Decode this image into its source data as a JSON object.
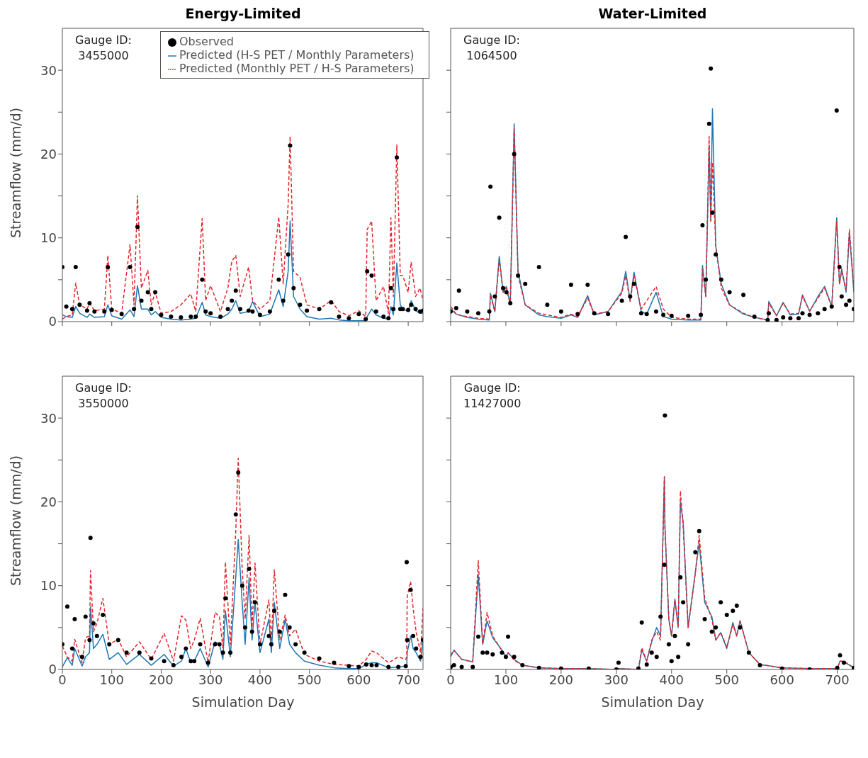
{
  "chart_data": [
    {
      "type": "line",
      "title": "Energy-Limited",
      "ylabel": "Streamflow (mm/d)",
      "annotations": [
        "Gauge ID:",
        "3455000"
      ],
      "legend": "top right",
      "tick_labels": "y",
      "xlim": [
        0,
        730
      ],
      "xticks": [
        0,
        100,
        200,
        300,
        400,
        500,
        600,
        700
      ],
      "ylim": [
        0,
        35
      ],
      "yticks": [
        0,
        {
          "value": 5,
          "label": null
        },
        10,
        {
          "value": 15,
          "label": null
        },
        20,
        {
          "value": 25,
          "label": null
        },
        30
      ],
      "x": [
        0,
        8,
        20,
        27,
        35,
        50,
        55,
        65,
        85,
        92,
        100,
        120,
        137,
        145,
        152,
        160,
        173,
        180,
        188,
        200,
        220,
        240,
        260,
        270,
        283,
        290,
        300,
        320,
        335,
        343,
        351,
        360,
        377,
        385,
        400,
        420,
        438,
        447,
        457,
        461,
        468,
        481,
        495,
        520,
        544,
        560,
        580,
        600,
        614,
        617,
        626,
        635,
        650,
        660,
        665,
        670,
        677,
        684,
        689,
        700,
        706,
        715,
        724,
        730
      ],
      "series": [
        {
          "name": "Observed",
          "type": "scatter",
          "marker": "circle",
          "color": "#000000",
          "values": [
            6.5,
            1.8,
            1.5,
            6.5,
            2.0,
            1.3,
            2.2,
            1.2,
            1.2,
            6.5,
            1.4,
            0.9,
            6.5,
            1.5,
            11.3,
            2.5,
            3.5,
            1.5,
            3.5,
            0.8,
            0.6,
            0.5,
            0.6,
            0.6,
            5.0,
            1.2,
            1.0,
            0.6,
            1.5,
            2.5,
            3.7,
            1.5,
            1.3,
            1.2,
            0.8,
            1.2,
            5.0,
            2.5,
            8.0,
            21.0,
            4.0,
            2.0,
            1.3,
            1.5,
            2.3,
            0.6,
            0.4,
            0.9,
            0.3,
            6.0,
            5.5,
            1.2,
            0.6,
            0.4,
            4.0,
            1.5,
            19.6,
            1.5,
            1.5,
            1.4,
            2.0,
            1.5,
            1.2,
            1.3
          ]
        },
        {
          "name": "Predicted (H-S PET / Monthly Parameters)",
          "type": "line",
          "line_style": "solid",
          "color": "#1f77b4",
          "values": [
            0.8,
            0.6,
            0.5,
            1.8,
            1.0,
            0.5,
            0.9,
            0.5,
            0.6,
            2.0,
            0.7,
            0.3,
            1.4,
            0.6,
            4.3,
            1.5,
            1.5,
            0.8,
            1.2,
            0.5,
            0.3,
            0.2,
            0.3,
            0.4,
            2.3,
            0.8,
            0.6,
            0.4,
            0.9,
            1.5,
            2.5,
            1.0,
            1.2,
            2.4,
            0.6,
            0.9,
            3.8,
            1.8,
            6.0,
            12.0,
            3.0,
            1.5,
            0.6,
            0.3,
            0.4,
            0.2,
            0.1,
            0.1,
            0.1,
            0.6,
            1.5,
            0.8,
            0.4,
            0.3,
            1.8,
            0.8,
            7.0,
            2.0,
            1.5,
            1.2,
            2.5,
            1.3,
            1.0,
            1.0
          ]
        },
        {
          "name": "Predicted (Monthly PET / H-S Parameters)",
          "type": "line",
          "line_style": "dashed",
          "color": "#e3262b",
          "values": [
            0.3,
            0.6,
            0.8,
            4.6,
            2.0,
            1.5,
            2.2,
            1.3,
            1.5,
            7.9,
            1.5,
            1.0,
            9.2,
            2.0,
            15.0,
            4.0,
            6.1,
            2.0,
            3.5,
            1.0,
            1.2,
            2.0,
            3.3,
            1.2,
            12.3,
            2.5,
            4.3,
            1.2,
            4.0,
            7.2,
            7.9,
            3.0,
            6.5,
            2.5,
            1.5,
            2.5,
            12.5,
            4.5,
            14.0,
            22.1,
            6.0,
            5.3,
            2.0,
            1.5,
            2.5,
            1.2,
            0.7,
            1.3,
            0.6,
            11.0,
            12.0,
            2.5,
            4.2,
            1.0,
            12.4,
            3.0,
            21.1,
            5.5,
            5.5,
            3.5,
            7.1,
            3.0,
            4.0,
            2.5
          ]
        }
      ]
    },
    {
      "type": "line",
      "title": "Water-Limited",
      "annotations": [
        "Gauge ID:",
        "1064500"
      ],
      "tick_labels": false,
      "xlim": [
        0,
        730
      ],
      "xticks": [
        0,
        100,
        200,
        300,
        400,
        500,
        600,
        700
      ],
      "ylim": [
        0,
        35
      ],
      "yticks": [
        0,
        {
          "value": 5,
          "label": null
        },
        {
          "value": 10,
          "label": null
        },
        {
          "value": 15,
          "label": null
        },
        {
          "value": 20,
          "label": null
        },
        {
          "value": 25,
          "label": null
        },
        {
          "value": 30,
          "label": null
        }
      ],
      "x": [
        0,
        10,
        15,
        30,
        50,
        70,
        72,
        80,
        88,
        95,
        101,
        108,
        115,
        122,
        135,
        160,
        175,
        200,
        218,
        230,
        248,
        260,
        285,
        310,
        317,
        325,
        332,
        345,
        355,
        372,
        385,
        400,
        430,
        453,
        456,
        462,
        468,
        471,
        474,
        480,
        490,
        505,
        530,
        550,
        574,
        576,
        590,
        602,
        615,
        630,
        637,
        650,
        665,
        677,
        690,
        699,
        704,
        708,
        716,
        722,
        730
      ],
      "series": [
        {
          "type": "scatter",
          "marker": "circle",
          "color": "#000000",
          "values": [
            1.2,
            1.6,
            3.7,
            1.2,
            1.0,
            1.2,
            16.1,
            3.0,
            12.4,
            4.0,
            3.5,
            2.2,
            20.0,
            5.5,
            4.5,
            6.5,
            2.0,
            1.2,
            4.4,
            0.9,
            4.4,
            1.0,
            0.9,
            2.5,
            10.1,
            3.0,
            4.5,
            1.0,
            0.9,
            1.2,
            0.8,
            0.7,
            0.7,
            0.8,
            11.5,
            5.0,
            23.6,
            30.2,
            13.0,
            8.0,
            5.0,
            3.5,
            3.2,
            0.6,
            0.2,
            1.0,
            0.2,
            0.5,
            0.4,
            0.4,
            1.0,
            0.8,
            1.0,
            1.5,
            1.8,
            25.2,
            6.5,
            3.0,
            2.0,
            2.5,
            1.5
          ]
        },
        {
          "type": "line",
          "line_style": "solid",
          "color": "#1f77b4",
          "values": [
            1.5,
            0.9,
            0.8,
            0.5,
            0.3,
            0.2,
            3.4,
            1.2,
            7.8,
            3.5,
            4.2,
            2.0,
            23.6,
            6.0,
            2.0,
            0.8,
            0.6,
            0.4,
            0.8,
            0.5,
            3.1,
            0.8,
            1.2,
            3.6,
            6.0,
            2.5,
            5.9,
            1.2,
            0.9,
            3.5,
            0.6,
            0.3,
            0.2,
            0.2,
            6.7,
            3.0,
            21.0,
            12.0,
            25.4,
            9.0,
            4.5,
            2.0,
            0.9,
            0.5,
            0.2,
            2.4,
            0.7,
            2.3,
            0.8,
            0.9,
            3.2,
            1.2,
            3.0,
            4.2,
            1.8,
            12.4,
            4.5,
            6.3,
            3.5,
            10.7,
            3.5
          ]
        },
        {
          "type": "line",
          "line_style": "dashed",
          "color": "#e3262b",
          "values": [
            1.8,
            0.9,
            0.8,
            0.6,
            0.4,
            0.3,
            3.2,
            1.2,
            7.5,
            3.5,
            4.0,
            2.0,
            23.0,
            5.5,
            2.0,
            1.0,
            0.8,
            0.5,
            0.9,
            0.6,
            2.8,
            0.9,
            1.2,
            3.4,
            5.5,
            2.4,
            5.5,
            1.5,
            2.5,
            4.2,
            1.5,
            0.5,
            0.3,
            0.3,
            6.3,
            3.0,
            22.1,
            12.0,
            19.0,
            9.0,
            4.0,
            2.0,
            1.0,
            0.5,
            0.2,
            2.2,
            0.7,
            2.2,
            0.9,
            1.0,
            3.0,
            1.3,
            2.8,
            4.0,
            1.8,
            12.0,
            4.5,
            6.0,
            3.8,
            11.0,
            4.0
          ]
        }
      ]
    },
    {
      "type": "line",
      "xlabel": "Simulation Day",
      "ylabel": "Streamflow (mm/d)",
      "annotations": [
        "Gauge ID:",
        "3550000"
      ],
      "xlim": [
        0,
        730
      ],
      "xticks": [
        0,
        100,
        200,
        300,
        400,
        500,
        600,
        700
      ],
      "ylim": [
        0,
        35
      ],
      "yticks": [
        0,
        {
          "value": 5,
          "label": null
        },
        10,
        {
          "value": 15,
          "label": null
        },
        20,
        {
          "value": 25,
          "label": null
        },
        30
      ],
      "x": [
        0,
        10,
        20,
        25,
        40,
        47,
        55,
        57,
        63,
        70,
        82,
        95,
        113,
        130,
        156,
        180,
        206,
        225,
        241,
        250,
        260,
        267,
        279,
        295,
        309,
        318,
        325,
        330,
        340,
        351,
        356,
        364,
        370,
        378,
        384,
        390,
        400,
        418,
        423,
        429,
        440,
        451,
        460,
        472,
        490,
        520,
        550,
        580,
        600,
        615,
        626,
        636,
        660,
        680,
        695,
        697,
        698,
        705,
        710,
        716,
        725,
        730
      ],
      "series": [
        {
          "type": "scatter",
          "marker": "circle",
          "color": "#000000",
          "values": [
            3.0,
            7.5,
            2.5,
            6.0,
            1.5,
            6.3,
            3.5,
            15.7,
            5.5,
            4.0,
            6.5,
            3.0,
            3.5,
            2.0,
            2.0,
            1.3,
            1.0,
            0.5,
            1.5,
            2.5,
            1.0,
            1.0,
            3.0,
            0.8,
            3.0,
            3.0,
            2.0,
            8.5,
            2.0,
            18.5,
            23.5,
            10.0,
            5.0,
            12.0,
            4.5,
            8.0,
            3.0,
            4.0,
            3.0,
            7.0,
            4.5,
            8.9,
            5.0,
            3.0,
            2.0,
            1.3,
            0.8,
            0.4,
            0.3,
            0.6,
            0.5,
            0.5,
            0.3,
            0.3,
            0.4,
            12.8,
            3.5,
            9.5,
            4.0,
            2.5,
            1.5,
            3.5
          ]
        },
        {
          "type": "line",
          "line_style": "solid",
          "color": "#1f77b4",
          "values": [
            0.3,
            1.4,
            0.5,
            2.5,
            0.4,
            1.5,
            2.0,
            7.5,
            2.5,
            3.0,
            4.2,
            1.2,
            2.0,
            0.6,
            1.8,
            0.5,
            1.8,
            0.4,
            1.0,
            2.5,
            0.8,
            1.0,
            2.5,
            0.3,
            3.3,
            3.0,
            1.2,
            7.0,
            1.5,
            11.0,
            15.5,
            8.0,
            3.0,
            11.0,
            3.5,
            8.0,
            2.0,
            6.0,
            2.0,
            8.0,
            2.5,
            6.0,
            3.0,
            2.0,
            1.0,
            0.5,
            0.2,
            0.1,
            0.1,
            0.6,
            0.8,
            0.8,
            0.2,
            0.3,
            0.4,
            0.4,
            2.0,
            4.0,
            2.5,
            2.0,
            1.0,
            3.5
          ]
        },
        {
          "type": "line",
          "line_style": "dashed",
          "color": "#e3262b",
          "values": [
            2.8,
            1.5,
            1.0,
            3.6,
            0.8,
            3.8,
            4.0,
            11.8,
            4.5,
            5.5,
            8.5,
            3.0,
            3.6,
            1.5,
            3.3,
            1.2,
            4.3,
            1.0,
            6.4,
            5.9,
            2.5,
            3.5,
            6.1,
            0.8,
            6.8,
            6.3,
            2.5,
            12.8,
            3.0,
            16.5,
            25.2,
            12.0,
            6.0,
            16.0,
            5.0,
            12.7,
            3.0,
            8.3,
            3.0,
            11.9,
            3.5,
            6.5,
            4.0,
            4.8,
            1.8,
            1.0,
            0.6,
            0.5,
            0.4,
            1.2,
            2.2,
            2.0,
            0.8,
            1.5,
            1.2,
            1.5,
            8.7,
            10.5,
            7.3,
            4.5,
            2.0,
            7.3
          ]
        }
      ]
    },
    {
      "type": "line",
      "xlabel": "Simulation Day",
      "annotations": [
        "Gauge ID:",
        "11427000"
      ],
      "tick_labels": "x",
      "xlim": [
        0,
        730
      ],
      "xticks": [
        0,
        100,
        200,
        300,
        400,
        500,
        600,
        700
      ],
      "ylim": [
        0,
        35
      ],
      "yticks": [
        0,
        {
          "value": 5,
          "label": null
        },
        {
          "value": 10,
          "label": null
        },
        {
          "value": 15,
          "label": null
        },
        {
          "value": 20,
          "label": null
        },
        {
          "value": 25,
          "label": null
        },
        {
          "value": 30,
          "label": null
        }
      ],
      "x": [
        0,
        6,
        20,
        40,
        50,
        58,
        66,
        76,
        93,
        100,
        104,
        115,
        130,
        160,
        200,
        250,
        300,
        304,
        340,
        346,
        355,
        364,
        373,
        380,
        387,
        388,
        395,
        400,
        406,
        412,
        416,
        421,
        430,
        443,
        450,
        460,
        473,
        480,
        489,
        500,
        511,
        518,
        524,
        540,
        560,
        600,
        650,
        700,
        705,
        712,
        730
      ],
      "series": [
        {
          "type": "scatter",
          "marker": "circle",
          "color": "#000000",
          "values": [
            0.3,
            0.5,
            0.3,
            0.3,
            3.9,
            2.0,
            2.0,
            1.8,
            2.0,
            1.5,
            3.9,
            1.5,
            0.5,
            0.2,
            0.1,
            0.1,
            0,
            0.8,
            0.1,
            5.6,
            0.6,
            2.0,
            1.5,
            6.3,
            12.5,
            30.3,
            3.0,
            1.0,
            4.0,
            1.5,
            11.0,
            8.0,
            3.0,
            14.0,
            16.5,
            6.0,
            4.5,
            5.0,
            8.0,
            6.5,
            7.0,
            7.6,
            5.0,
            2.0,
            0.5,
            0.1,
            0,
            0.2,
            1.7,
            0.8,
            0.2
          ]
        },
        {
          "type": "line",
          "line_style": "solid",
          "color": "#1f77b4",
          "values": [
            1.5,
            2.3,
            1.2,
            0.9,
            11.3,
            3.0,
            5.8,
            3.8,
            2.3,
            1.5,
            2.0,
            1.2,
            0.5,
            0.2,
            0.1,
            0.1,
            0,
            0.1,
            0,
            2.3,
            1.0,
            3.3,
            5.0,
            4.0,
            23.0,
            17.0,
            6.0,
            4.0,
            8.4,
            5.0,
            20.0,
            17.6,
            5.0,
            11.6,
            15.1,
            8.0,
            6.3,
            3.5,
            4.4,
            2.5,
            5.6,
            4.0,
            5.8,
            2.0,
            0.6,
            0.2,
            0.1,
            0.1,
            1.0,
            0.9,
            0.2
          ]
        },
        {
          "type": "line",
          "line_style": "dashed",
          "color": "#e3262b",
          "values": [
            1.7,
            2.3,
            1.2,
            0.9,
            13.0,
            3.0,
            6.8,
            4.0,
            2.2,
            1.5,
            2.0,
            1.1,
            0.5,
            0.2,
            0.1,
            0.1,
            0,
            0.1,
            0,
            2.6,
            1.0,
            3.5,
            4.5,
            3.5,
            23.0,
            17.0,
            6.0,
            4.0,
            8.3,
            5.0,
            21.3,
            17.0,
            5.0,
            11.5,
            16.0,
            8.5,
            6.0,
            3.5,
            4.4,
            2.7,
            5.3,
            4.0,
            5.8,
            2.0,
            0.6,
            0.2,
            0.1,
            0.1,
            1.0,
            1.0,
            0.2
          ]
        }
      ]
    }
  ]
}
